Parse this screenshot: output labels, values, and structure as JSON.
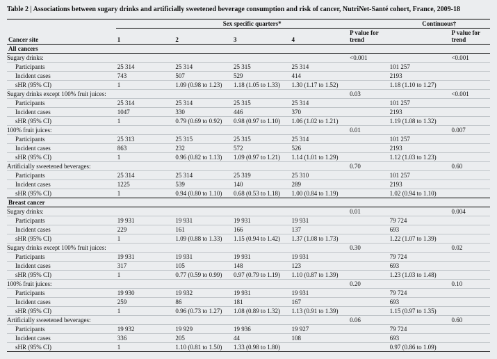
{
  "title": "Table 2 | Associations between sugary drinks and artificially sweetened beverage consumption and risk of cancer, NutriNet-Santé cohort, France, 2009-18",
  "headers": {
    "site": "Cancer site",
    "quarters_span": "Sex specific quarters*",
    "continuous_span": "Continuous†",
    "q1": "1",
    "q2": "2",
    "q3": "3",
    "q4": "4",
    "p_trend": "P value for trend"
  },
  "section1": "All cancers",
  "section2": "Breast cancer",
  "g": {
    "a1": {
      "name": "Sugary drinks:",
      "p": "<0.001",
      "cont_p": "<0.001",
      "r1": {
        "l": "Participants",
        "q1": "25 314",
        "q2": "25 314",
        "q3": "25 315",
        "q4": "25 314",
        "c": "101 257"
      },
      "r2": {
        "l": "Incident cases",
        "q1": "743",
        "q2": "507",
        "q3": "529",
        "q4": "414",
        "c": "2193"
      },
      "r3": {
        "l": "sHR (95% CI)",
        "q1": "1",
        "q2": "1.09 (0.98 to 1.23)",
        "q3": "1.18 (1.05 to 1.33)",
        "q4": "1.30 (1.17 to 1.52)",
        "c": "1.18 (1.10 to 1.27)"
      }
    },
    "a2": {
      "name": "Sugary drinks except 100% fruit juices:",
      "p": "0.03",
      "cont_p": "<0.001",
      "r1": {
        "l": "Participants",
        "q1": "25 314",
        "q2": "25 314",
        "q3": "25 315",
        "q4": "25 314",
        "c": "101 257"
      },
      "r2": {
        "l": "Incident cases",
        "q1": "1047",
        "q2": "330",
        "q3": "446",
        "q4": "370",
        "c": "2193"
      },
      "r3": {
        "l": "sHR (95% CI)",
        "q1": "1",
        "q2": "0.79 (0.69 to 0.92)",
        "q3": "0.98 (0.97 to 1.10)",
        "q4": "1.06 (1.02 to 1.21)",
        "c": "1.19 (1.08 to 1.32)"
      }
    },
    "a3": {
      "name": "100% fruit juices:",
      "p": "0.01",
      "cont_p": "0.007",
      "r1": {
        "l": "Participants",
        "q1": "25 313",
        "q2": "25 315",
        "q3": "25 315",
        "q4": "25 314",
        "c": "101 257"
      },
      "r2": {
        "l": "Incident cases",
        "q1": "863",
        "q2": "232",
        "q3": "572",
        "q4": "526",
        "c": "2193"
      },
      "r3": {
        "l": "sHR (95% CI)",
        "q1": "1",
        "q2": "0.96 (0.82 to 1.13)",
        "q3": "1.09 (0.97 to 1.21)",
        "q4": "1.14 (1.01 to 1.29)",
        "c": "1.12 (1.03 to 1.23)"
      }
    },
    "a4": {
      "name": "Artificially sweetened beverages:",
      "p": "0.70",
      "cont_p": "0.60",
      "r1": {
        "l": "Participants",
        "q1": "25 314",
        "q2": "25 314",
        "q3": "25 319",
        "q4": "25 310",
        "c": "101 257"
      },
      "r2": {
        "l": "Incident cases",
        "q1": "1225",
        "q2": "539",
        "q3": "140",
        "q4": "289",
        "c": "2193"
      },
      "r3": {
        "l": "sHR (95% CI)",
        "q1": "1",
        "q2": "0.94 (0.80 to 1.10)",
        "q3": "0.68 (0.53 to 1.18)",
        "q4": "1.00 (0.84 to 1.19)",
        "c": "1.02 (0.94 to 1.10)"
      }
    },
    "b1": {
      "name": "Sugary drinks:",
      "p": "0.01",
      "cont_p": "0.004",
      "r1": {
        "l": "Participants",
        "q1": "19 931",
        "q2": "19 931",
        "q3": "19 931",
        "q4": "19 931",
        "c": "79 724"
      },
      "r2": {
        "l": "Incident cases",
        "q1": "229",
        "q2": "161",
        "q3": "166",
        "q4": "137",
        "c": "693"
      },
      "r3": {
        "l": "sHR (95% CI)",
        "q1": "1",
        "q2": "1.09 (0.88 to 1.33)",
        "q3": "1.15 (0.94 to 1.42)",
        "q4": "1.37 (1.08 to 1.73)",
        "c": "1.22 (1.07 to 1.39)"
      }
    },
    "b2": {
      "name": "Sugary drinks except 100% fruit juices:",
      "p": "0.30",
      "cont_p": "0.02",
      "r1": {
        "l": "Participants",
        "q1": "19 931",
        "q2": "19 931",
        "q3": "19 931",
        "q4": "19 931",
        "c": "79 724"
      },
      "r2": {
        "l": "Incident cases",
        "q1": "317",
        "q2": "105",
        "q3": "148",
        "q4": "123",
        "c": "693"
      },
      "r3": {
        "l": "sHR (95% CI)",
        "q1": "1",
        "q2": "0.77 (0.59 to 0.99)",
        "q3": "0.97 (0.79 to 1.19)",
        "q4": "1.10 (0.87 to 1.39)",
        "c": "1.23 (1.03 to 1.48)"
      }
    },
    "b3": {
      "name": "100% fruit juices:",
      "p": "0.20",
      "cont_p": "0.10",
      "r1": {
        "l": "Participants",
        "q1": "19 930",
        "q2": "19 932",
        "q3": "19 931",
        "q4": "19 931",
        "c": "79 724"
      },
      "r2": {
        "l": "Incident cases",
        "q1": "259",
        "q2": "86",
        "q3": "181",
        "q4": "167",
        "c": "693"
      },
      "r3": {
        "l": "sHR (95% CI)",
        "q1": "1",
        "q2": "0.96 (0.73 to 1.27)",
        "q3": "1.08 (0.89 to 1.32)",
        "q4": "1.13 (0.91 to 1.39)",
        "c": "1.15 (0.97 to 1.35)"
      }
    },
    "b4": {
      "name": "Artificially sweetened beverages:",
      "p": "0.06",
      "cont_p": "0.60",
      "r1": {
        "l": "Participants",
        "q1": "19 932",
        "q2": "19 929",
        "q3": "19 936",
        "q4": "19 927",
        "c": "79 724"
      },
      "r2": {
        "l": "Incident cases",
        "q1": "336",
        "q2": "205",
        "q3": "44",
        "q4": "108",
        "c": "693"
      },
      "r3": {
        "l": "sHR (95% CI)",
        "q1": "1",
        "q2": "1.10 (0.81 to 1.50)",
        "q3": "1.33 (0.98 to 1.80)",
        "q4": "",
        "c": "0.97 (0.86 to 1.09)"
      }
    }
  }
}
